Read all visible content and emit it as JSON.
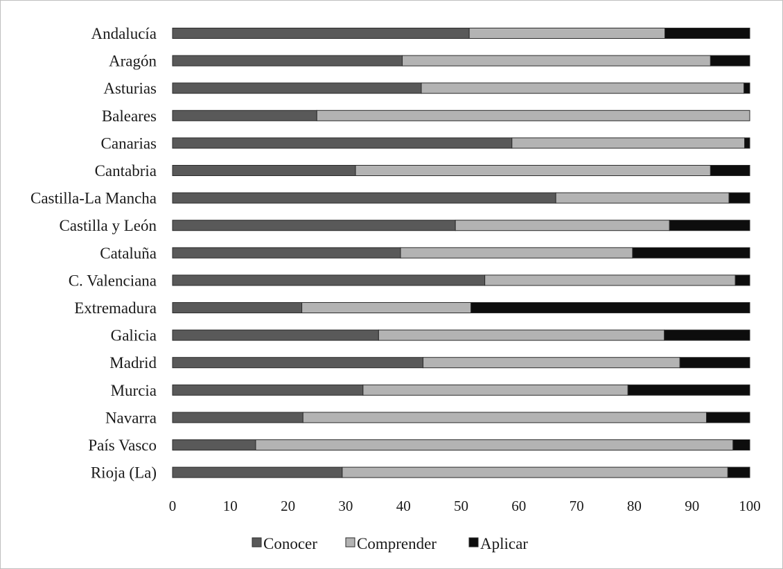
{
  "chart_data": {
    "type": "bar",
    "orientation": "horizontal",
    "stacked": true,
    "categories": [
      "Andalucía",
      "Aragón",
      "Asturias",
      "Baleares",
      "Canarias",
      "Cantabria",
      "Castilla-La Mancha",
      "Castilla y León",
      "Cataluña",
      "C. Valenciana",
      "Extremadura",
      "Galicia",
      "Madrid",
      "Murcia",
      "Navarra",
      "País Vasco",
      "Rioja (La)"
    ],
    "series": [
      {
        "name": "Conocer",
        "color": "#595959",
        "values": [
          51.4,
          39.8,
          43.1,
          25.0,
          58.8,
          31.7,
          66.4,
          49.0,
          39.5,
          54.1,
          22.4,
          35.7,
          43.4,
          33.0,
          22.6,
          14.4,
          29.4
        ]
      },
      {
        "name": "Comprender",
        "color": "#b3b3b3",
        "values": [
          33.9,
          53.4,
          55.9,
          75.0,
          40.3,
          61.5,
          30.0,
          37.1,
          40.2,
          43.4,
          29.3,
          49.5,
          44.5,
          45.9,
          69.9,
          82.7,
          66.8
        ]
      },
      {
        "name": "Aplicar",
        "color": "#0d0d0d",
        "values": [
          14.7,
          6.8,
          1.0,
          0.0,
          0.9,
          6.8,
          3.6,
          13.9,
          20.3,
          2.5,
          48.3,
          14.8,
          12.1,
          21.1,
          7.5,
          2.9,
          3.8
        ]
      }
    ],
    "xlim": [
      0,
      100
    ],
    "xticks": [
      "0",
      "10",
      "20",
      "30",
      "40",
      "50",
      "60",
      "70",
      "80",
      "90",
      "100"
    ],
    "grid": false,
    "legend_position": "bottom"
  }
}
